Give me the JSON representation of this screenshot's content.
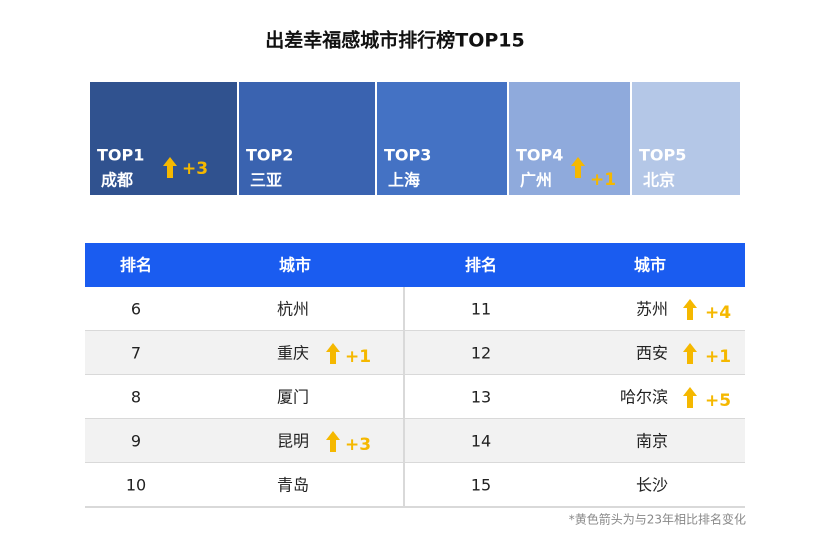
{
  "title": "出差幸福感城市排行榜TOP15",
  "top": [
    {
      "rank": "TOP1",
      "city": "成都",
      "change": "+3"
    },
    {
      "rank": "TOP2",
      "city": "三亚"
    },
    {
      "rank": "TOP3",
      "city": "上海"
    },
    {
      "rank": "TOP4",
      "city": "广州",
      "change": "+1"
    },
    {
      "rank": "TOP5",
      "city": "北京"
    }
  ],
  "table": {
    "headers": [
      "排名",
      "城市",
      "排名",
      "城市"
    ],
    "rows": [
      {
        "left": {
          "rank": 6,
          "city": "杭州"
        },
        "right": {
          "rank": 11,
          "city": "苏州",
          "change": "+4"
        }
      },
      {
        "left": {
          "rank": 7,
          "city": "重庆",
          "change": "+1"
        },
        "right": {
          "rank": 12,
          "city": "西安",
          "change": "+1"
        }
      },
      {
        "left": {
          "rank": 8,
          "city": "厦门"
        },
        "right": {
          "rank": 13,
          "city": "哈尔滨",
          "change": "+5"
        }
      },
      {
        "left": {
          "rank": 9,
          "city": "昆明",
          "change": "+3"
        },
        "right": {
          "rank": 14,
          "city": "南京"
        }
      },
      {
        "left": {
          "rank": 10,
          "city": "青岛"
        },
        "right": {
          "rank": 15,
          "city": "长沙"
        }
      }
    ]
  },
  "footnote": "*黄色箭头为与23年相比排名变化"
}
